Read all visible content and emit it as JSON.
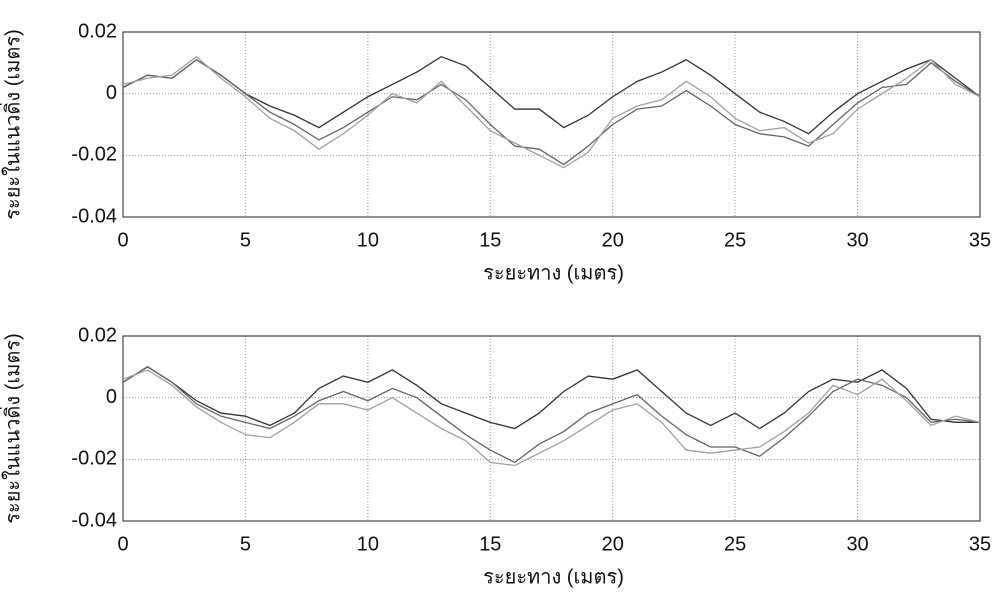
{
  "chart_data": [
    {
      "type": "line",
      "xlabel": "ระยะทาง (เมตร)",
      "ylabel": "ระยะในแนวดิ่ง (เมตร)",
      "x": [
        0,
        1,
        2,
        3,
        4,
        5,
        6,
        7,
        8,
        9,
        10,
        11,
        12,
        13,
        14,
        15,
        16,
        17,
        18,
        19,
        20,
        21,
        22,
        23,
        24,
        25,
        26,
        27,
        28,
        29,
        30,
        31,
        32,
        33,
        34,
        35
      ],
      "series": [
        {
          "color": "#333333",
          "values": [
            0.002,
            0.006,
            0.005,
            0.011,
            0.006,
            0,
            -0.004,
            -0.007,
            -0.011,
            -0.006,
            -0.001,
            0.003,
            0.007,
            0.012,
            0.009,
            0.002,
            -0.005,
            -0.005,
            -0.011,
            -0.007,
            -0.001,
            0.004,
            0.007,
            0.011,
            0.006,
            0,
            -0.006,
            -0.009,
            -0.013,
            -0.006,
            0,
            0.004,
            0.008,
            0.011,
            0.005,
            -0.001
          ]
        },
        {
          "color": "#666666",
          "values": [
            0.002,
            0.006,
            0.005,
            0.011,
            0.006,
            0,
            -0.006,
            -0.01,
            -0.015,
            -0.011,
            -0.006,
            -0.001,
            -0.002,
            0.003,
            -0.002,
            -0.01,
            -0.017,
            -0.018,
            -0.023,
            -0.017,
            -0.01,
            -0.005,
            -0.004,
            0.001,
            -0.004,
            -0.01,
            -0.013,
            -0.014,
            -0.017,
            -0.01,
            -0.003,
            0.002,
            0.003,
            0.01,
            0.004,
            -0.001
          ]
        },
        {
          "color": "#a0a0a0",
          "values": [
            0.003,
            0.005,
            0.006,
            0.012,
            0.005,
            -0.001,
            -0.008,
            -0.012,
            -0.018,
            -0.013,
            -0.007,
            0,
            -0.003,
            0.004,
            -0.004,
            -0.012,
            -0.016,
            -0.02,
            -0.024,
            -0.019,
            -0.008,
            -0.004,
            -0.002,
            0.004,
            -0.001,
            -0.008,
            -0.012,
            -0.011,
            -0.016,
            -0.013,
            -0.005,
            0,
            0.005,
            0.011,
            0.003,
            -0.001
          ]
        }
      ],
      "xlim": [
        0,
        35
      ],
      "xticks": [
        0,
        5,
        10,
        15,
        20,
        25,
        30,
        35
      ],
      "ylim": [
        -0.04,
        0.02
      ],
      "yticks": [
        0.02,
        0,
        -0.02,
        -0.04
      ],
      "grid": true
    },
    {
      "type": "line",
      "xlabel": "ระยะทาง (เมตร)",
      "ylabel": "ระยะในแนวดิ่ง (เมตร)",
      "x": [
        0,
        1,
        2,
        3,
        4,
        5,
        6,
        7,
        8,
        9,
        10,
        11,
        12,
        13,
        14,
        15,
        16,
        17,
        18,
        19,
        20,
        21,
        22,
        23,
        24,
        25,
        26,
        27,
        28,
        29,
        30,
        31,
        32,
        33,
        34,
        35
      ],
      "series": [
        {
          "color": "#333333",
          "values": [
            0.005,
            0.01,
            0.005,
            -0.001,
            -0.005,
            -0.006,
            -0.009,
            -0.005,
            0.003,
            0.007,
            0.005,
            0.009,
            0.004,
            -0.002,
            -0.005,
            -0.008,
            -0.01,
            -0.005,
            0.002,
            0.007,
            0.006,
            0.009,
            0.002,
            -0.005,
            -0.009,
            -0.005,
            -0.01,
            -0.005,
            0.002,
            0.006,
            0.005,
            0.009,
            0.003,
            -0.007,
            -0.008,
            -0.008
          ]
        },
        {
          "color": "#666666",
          "values": [
            0.005,
            0.01,
            0.005,
            -0.002,
            -0.006,
            -0.008,
            -0.01,
            -0.006,
            -0.001,
            0.002,
            -0.001,
            0.003,
            0,
            -0.006,
            -0.012,
            -0.017,
            -0.021,
            -0.015,
            -0.011,
            -0.005,
            -0.002,
            0.001,
            -0.006,
            -0.012,
            -0.016,
            -0.016,
            -0.019,
            -0.013,
            -0.006,
            0.002,
            0.006,
            0.004,
            0,
            -0.008,
            -0.007,
            -0.008
          ]
        },
        {
          "color": "#a0a0a0",
          "values": [
            0.006,
            0.009,
            0.004,
            -0.003,
            -0.008,
            -0.012,
            -0.013,
            -0.008,
            -0.002,
            -0.002,
            -0.004,
            0,
            -0.005,
            -0.01,
            -0.014,
            -0.021,
            -0.022,
            -0.018,
            -0.014,
            -0.009,
            -0.004,
            -0.002,
            -0.008,
            -0.017,
            -0.018,
            -0.017,
            -0.016,
            -0.011,
            -0.005,
            0.004,
            0.001,
            0.006,
            -0.001,
            -0.009,
            -0.006,
            -0.008
          ]
        }
      ],
      "xlim": [
        0,
        35
      ],
      "xticks": [
        0,
        5,
        10,
        15,
        20,
        25,
        30,
        35
      ],
      "ylim": [
        -0.04,
        0.02
      ],
      "yticks": [
        0.02,
        0,
        -0.02,
        -0.04
      ],
      "grid": true
    }
  ]
}
